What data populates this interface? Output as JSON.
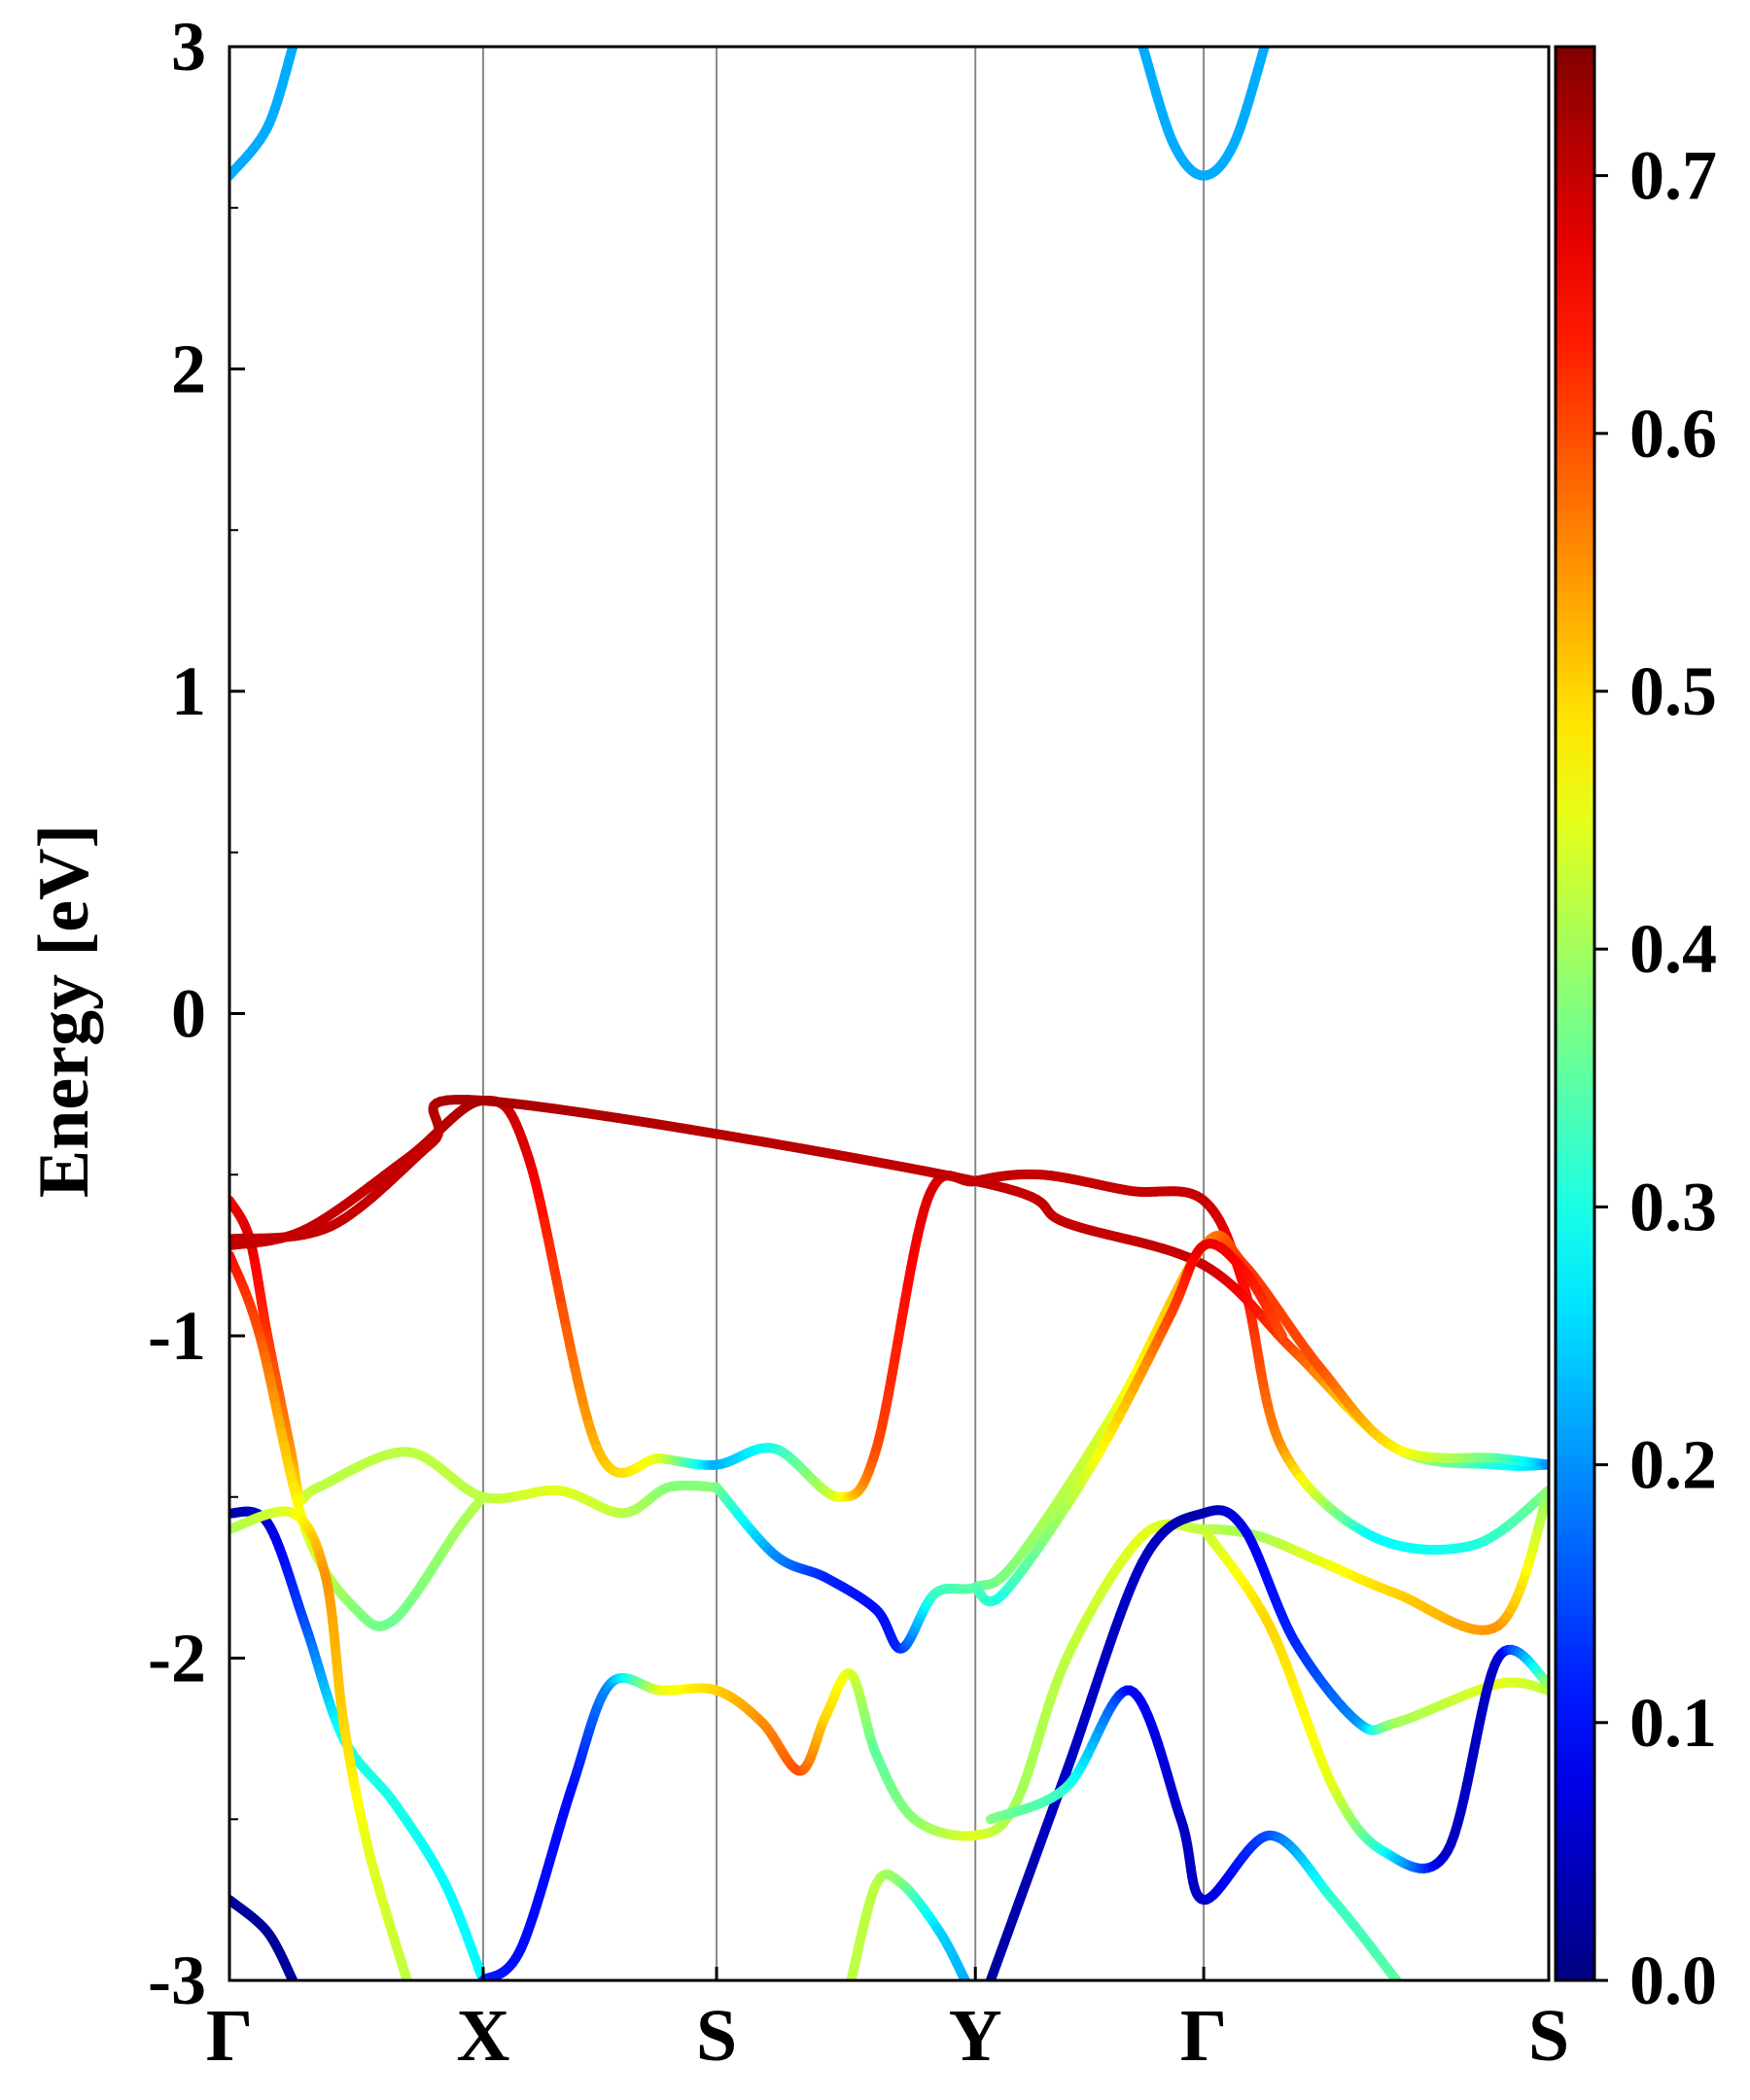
{
  "chart_data": {
    "type": "line",
    "title": "",
    "xlabel": "",
    "ylabel": "Energy [eV]",
    "ylim": [
      -3,
      3
    ],
    "y_ticks": [
      "-3",
      "-2",
      "-1",
      "0",
      "1",
      "2",
      "3"
    ],
    "y_tick_values": [
      -3,
      -2,
      -1,
      0,
      1,
      2,
      3
    ],
    "y_minor_tick_values": [
      -2.5,
      -1.5,
      -0.5,
      0.5,
      1.5,
      2.5
    ],
    "k_path": {
      "labels": [
        "Γ",
        "X",
        "S",
        "Y",
        "Γ",
        "S"
      ],
      "positions": [
        0,
        1,
        1.92,
        2.94,
        3.84,
        5.2
      ]
    },
    "grid": "vertical lines at high-symmetry points",
    "colorbar": {
      "range": [
        0,
        0.75
      ],
      "ticks": [
        "0.0",
        "0.1",
        "0.2",
        "0.3",
        "0.4",
        "0.5",
        "0.6",
        "0.7"
      ],
      "tick_values": [
        0,
        0.1,
        0.2,
        0.3,
        0.4,
        0.5,
        0.6,
        0.7
      ],
      "colormap": "jet"
    },
    "series": [
      {
        "name": "band-v1",
        "points": [
          [
            0,
            -0.58,
            0.66
          ],
          [
            0.08,
            -0.7,
            0.68
          ],
          [
            0.15,
            -1.0,
            0.62
          ],
          [
            0.24,
            -1.35,
            0.55
          ],
          [
            0.28,
            -1.5,
            0.48
          ],
          [
            0.35,
            -1.47,
            0.42
          ],
          [
            0.7,
            -1.36,
            0.42
          ],
          [
            1.0,
            -1.5,
            0.42
          ],
          [
            1.3,
            -1.48,
            0.45
          ],
          [
            1.55,
            -1.55,
            0.42
          ],
          [
            1.73,
            -1.47,
            0.38
          ],
          [
            1.92,
            -1.47,
            0.38
          ]
        ]
      },
      {
        "name": "band-v2",
        "points": [
          [
            0,
            -0.72,
            0.7
          ],
          [
            0.3,
            -0.67,
            0.7
          ],
          [
            0.7,
            -0.45,
            0.7
          ],
          [
            1.0,
            -0.27,
            0.72
          ],
          [
            1.18,
            -0.45,
            0.68
          ],
          [
            1.45,
            -1.35,
            0.52
          ],
          [
            1.7,
            -1.38,
            0.45
          ],
          [
            1.92,
            -1.4,
            0.22
          ],
          [
            2.15,
            -1.35,
            0.3
          ],
          [
            2.4,
            -1.5,
            0.45
          ],
          [
            2.55,
            -1.35,
            0.6
          ],
          [
            2.75,
            -0.58,
            0.68
          ],
          [
            2.94,
            -0.52,
            0.7
          ],
          [
            3.2,
            -0.5,
            0.7
          ],
          [
            3.55,
            -0.55,
            0.7
          ],
          [
            3.84,
            -0.58,
            0.7
          ],
          [
            4.0,
            -0.85,
            0.65
          ],
          [
            4.15,
            -1.35,
            0.55
          ],
          [
            4.5,
            -1.62,
            0.28
          ],
          [
            4.9,
            -1.65,
            0.3
          ],
          [
            5.2,
            -1.48,
            0.38
          ]
        ]
      },
      {
        "name": "band-v3",
        "points": [
          [
            0,
            -0.7,
            0.7
          ],
          [
            0.4,
            -0.66,
            0.7
          ],
          [
            0.8,
            -0.4,
            0.7
          ],
          [
            1.0,
            -0.27,
            0.72
          ],
          [
            2.94,
            -0.52,
            0.7
          ],
          [
            3.3,
            -0.65,
            0.7
          ],
          [
            3.84,
            -0.78,
            0.7
          ],
          [
            4.2,
            -1.05,
            0.6
          ],
          [
            4.6,
            -1.35,
            0.42
          ],
          [
            5.0,
            -1.4,
            0.3
          ],
          [
            5.2,
            -1.4,
            0.22
          ]
        ]
      },
      {
        "name": "band-v4",
        "points": [
          [
            0,
            -0.75,
            0.66
          ],
          [
            0.12,
            -1.0,
            0.6
          ],
          [
            0.3,
            -1.6,
            0.45
          ],
          [
            0.5,
            -1.85,
            0.38
          ],
          [
            0.65,
            -1.88,
            0.36
          ],
          [
            0.9,
            -1.6,
            0.4
          ],
          [
            1.0,
            -1.5,
            0.42
          ]
        ]
      },
      {
        "name": "band-v5",
        "points": [
          [
            0,
            -1.55,
            0.02
          ],
          [
            0.15,
            -1.58,
            0.06
          ],
          [
            0.3,
            -1.9,
            0.15
          ],
          [
            0.45,
            -2.25,
            0.3
          ],
          [
            0.65,
            -2.45,
            0.3
          ],
          [
            0.85,
            -2.7,
            0.28
          ],
          [
            1.0,
            -3.0,
            0.28
          ]
        ]
      },
      {
        "name": "band-v6",
        "points": [
          [
            0,
            -1.6,
            0.4
          ],
          [
            0.25,
            -1.55,
            0.45
          ],
          [
            0.38,
            -1.75,
            0.55
          ],
          [
            0.45,
            -2.2,
            0.5
          ],
          [
            0.55,
            -2.6,
            0.45
          ],
          [
            0.7,
            -3.0,
            0.42
          ]
        ]
      },
      {
        "name": "band-v7",
        "points": [
          [
            1.92,
            -1.47,
            0.38
          ],
          [
            2.15,
            -1.68,
            0.2
          ],
          [
            2.35,
            -1.75,
            0.12
          ],
          [
            2.55,
            -1.85,
            0.1
          ],
          [
            2.65,
            -1.97,
            0.12
          ],
          [
            2.78,
            -1.8,
            0.32
          ],
          [
            2.94,
            -1.78,
            0.35
          ],
          [
            3.1,
            -1.7,
            0.38
          ],
          [
            3.5,
            -1.22,
            0.45
          ],
          [
            3.84,
            -0.72,
            0.55
          ],
          [
            4.0,
            -0.78,
            0.62
          ],
          [
            4.3,
            -1.1,
            0.6
          ],
          [
            4.6,
            -1.35,
            0.48
          ],
          [
            5.0,
            -1.38,
            0.35
          ],
          [
            5.2,
            -1.4,
            0.2
          ]
        ]
      },
      {
        "name": "band-v8",
        "points": [
          [
            2.94,
            -1.78,
            0.35
          ],
          [
            3.05,
            -1.8,
            0.3
          ],
          [
            3.4,
            -1.4,
            0.45
          ],
          [
            3.7,
            -0.95,
            0.6
          ],
          [
            3.84,
            -0.72,
            0.68
          ],
          [
            4.0,
            -0.8,
            0.65
          ],
          [
            4.15,
            -1.0,
            0.6
          ]
        ]
      },
      {
        "name": "band-v9",
        "points": [
          [
            1.0,
            -3.0,
            0.12
          ],
          [
            1.15,
            -2.9,
            0.1
          ],
          [
            1.35,
            -2.4,
            0.1
          ],
          [
            1.5,
            -2.08,
            0.2
          ],
          [
            1.7,
            -2.1,
            0.45
          ],
          [
            1.92,
            -2.1,
            0.5
          ],
          [
            2.1,
            -2.2,
            0.55
          ],
          [
            2.25,
            -2.35,
            0.6
          ],
          [
            2.35,
            -2.18,
            0.5
          ],
          [
            2.45,
            -2.05,
            0.45
          ],
          [
            2.55,
            -2.3,
            0.35
          ],
          [
            2.7,
            -2.5,
            0.38
          ],
          [
            2.94,
            -2.55,
            0.45
          ],
          [
            3.1,
            -2.45,
            0.4
          ],
          [
            3.3,
            -2.0,
            0.42
          ],
          [
            3.6,
            -1.62,
            0.45
          ],
          [
            3.84,
            -1.6,
            0.42
          ],
          [
            4.05,
            -1.62,
            0.4
          ],
          [
            4.3,
            -1.7,
            0.45
          ],
          [
            4.6,
            -1.8,
            0.5
          ],
          [
            5.0,
            -1.9,
            0.55
          ],
          [
            5.2,
            -1.48,
            0.38
          ]
        ]
      },
      {
        "name": "band-v10",
        "points": [
          [
            3.0,
            -3.0,
            0.02
          ],
          [
            3.3,
            -2.35,
            0.05
          ],
          [
            3.6,
            -1.7,
            0.05
          ],
          [
            3.84,
            -1.55,
            0.03
          ],
          [
            4.0,
            -1.6,
            0.08
          ],
          [
            4.2,
            -1.95,
            0.12
          ],
          [
            4.45,
            -2.2,
            0.2
          ],
          [
            4.6,
            -2.2,
            0.4
          ],
          [
            5.0,
            -2.08,
            0.45
          ],
          [
            5.2,
            -2.1,
            0.42
          ]
        ]
      },
      {
        "name": "band-v11",
        "points": [
          [
            3.0,
            -2.5,
            0.38
          ],
          [
            3.3,
            -2.4,
            0.32
          ],
          [
            3.55,
            -2.1,
            0.1
          ],
          [
            3.75,
            -2.5,
            0.05
          ],
          [
            3.84,
            -2.75,
            0.05
          ],
          [
            4.1,
            -2.55,
            0.15
          ],
          [
            4.35,
            -2.75,
            0.32
          ],
          [
            4.6,
            -3.0,
            0.35
          ]
        ]
      },
      {
        "name": "band-v12",
        "points": [
          [
            3.84,
            -1.6,
            0.42
          ],
          [
            4.1,
            -1.9,
            0.5
          ],
          [
            4.35,
            -2.4,
            0.45
          ],
          [
            4.55,
            -2.6,
            0.3
          ],
          [
            4.8,
            -2.6,
            0.05
          ],
          [
            5.0,
            -2.0,
            0.05
          ],
          [
            5.2,
            -2.08,
            0.4
          ]
        ]
      },
      {
        "name": "band-v13",
        "points": [
          [
            0,
            -2.75,
            0.02
          ],
          [
            0.15,
            -2.85,
            0.02
          ],
          [
            0.25,
            -3.0,
            0.02
          ]
        ]
      },
      {
        "name": "band-v14",
        "points": [
          [
            2.45,
            -3.0,
            0.42
          ],
          [
            2.55,
            -2.7,
            0.42
          ],
          [
            2.65,
            -2.7,
            0.38
          ],
          [
            2.8,
            -2.85,
            0.25
          ],
          [
            2.9,
            -3.0,
            0.22
          ]
        ]
      },
      {
        "name": "band-c1",
        "points": [
          [
            0,
            2.6,
            0.22
          ],
          [
            0.15,
            2.75,
            0.22
          ],
          [
            0.25,
            3.0,
            0.22
          ]
        ]
      },
      {
        "name": "band-c2",
        "points": [
          [
            3.6,
            3.0,
            0.22
          ],
          [
            3.72,
            2.7,
            0.22
          ],
          [
            3.84,
            2.6,
            0.22
          ],
          [
            3.96,
            2.7,
            0.22
          ],
          [
            4.08,
            3.0,
            0.22
          ]
        ]
      }
    ]
  }
}
